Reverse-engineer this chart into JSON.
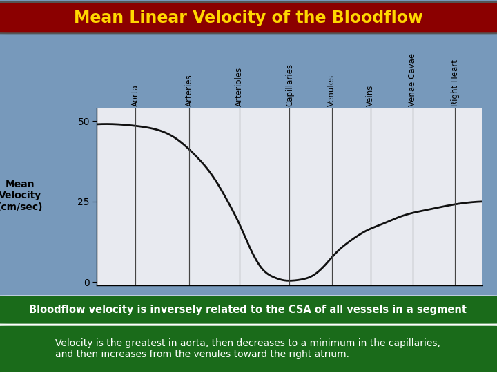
{
  "title": "Mean Linear Velocity of the Bloodflow",
  "title_color": "#FFD700",
  "title_bg_color": "#8B0000",
  "background_color": "#7799BB",
  "chart_bg_color": "#E8EAF0",
  "ylabel": "Mean\nVelocity\n(cm/sec)",
  "yticks": [
    0,
    25,
    50
  ],
  "vessel_labels": [
    "Aorta",
    "Arteries",
    "Arterioles",
    "Capillaries",
    "Venules",
    "Veins",
    "Venae Cavae",
    "Right Heart"
  ],
  "vessel_x": [
    0.1,
    0.24,
    0.37,
    0.5,
    0.61,
    0.71,
    0.82,
    0.93
  ],
  "bottom_text1": "Bloodflow velocity is inversely related to the CSA of all vessels in a segment",
  "bottom_text2": "Velocity is the greatest in aorta, then decreases to a minimum in the capillaries,\nand then increases from the venules toward the right atrium.",
  "bottom_bg": "#1A6B1A",
  "curve_color": "#111111",
  "vline_color": "#444444",
  "curve_x": [
    0.0,
    0.05,
    0.1,
    0.15,
    0.2,
    0.25,
    0.3,
    0.34,
    0.37,
    0.4,
    0.43,
    0.46,
    0.49,
    0.51,
    0.53,
    0.56,
    0.59,
    0.62,
    0.66,
    0.7,
    0.74,
    0.78,
    0.82,
    0.86,
    0.9,
    0.95,
    1.0
  ],
  "curve_y": [
    49,
    49,
    48.5,
    47.5,
    45,
    40,
    33,
    25,
    18,
    10,
    4,
    1.5,
    0.5,
    0.5,
    0.8,
    2,
    5,
    9,
    13,
    16,
    18,
    20,
    21.5,
    22.5,
    23.5,
    24.5,
    25
  ]
}
